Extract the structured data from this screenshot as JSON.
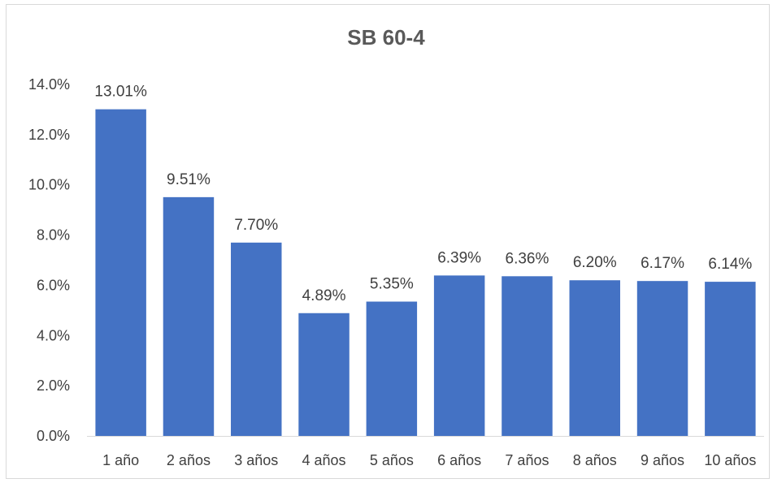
{
  "chart_data": {
    "type": "bar",
    "title": "SB 60-4",
    "categories": [
      "1 año",
      "2 años",
      "3 años",
      "4 años",
      "5 años",
      "6 años",
      "7 años",
      "8 años",
      "9 años",
      "10 años"
    ],
    "values": [
      13.01,
      9.51,
      7.7,
      4.89,
      5.35,
      6.39,
      6.36,
      6.2,
      6.17,
      6.14
    ],
    "data_labels": [
      "13.01%",
      "9.51%",
      "7.70%",
      "4.89%",
      "5.35%",
      "6.39%",
      "6.36%",
      "6.20%",
      "6.17%",
      "6.14%"
    ],
    "ylim": [
      0,
      14
    ],
    "yticks": [
      0,
      2,
      4,
      6,
      8,
      10,
      12,
      14
    ],
    "ytick_labels": [
      "0.0%",
      "2.0%",
      "4.0%",
      "6.0%",
      "8.0%",
      "10.0%",
      "12.0%",
      "14.0%"
    ],
    "xlabel": "",
    "ylabel": "",
    "grid": false,
    "legend": "none",
    "bar_color": "#4472c4"
  }
}
